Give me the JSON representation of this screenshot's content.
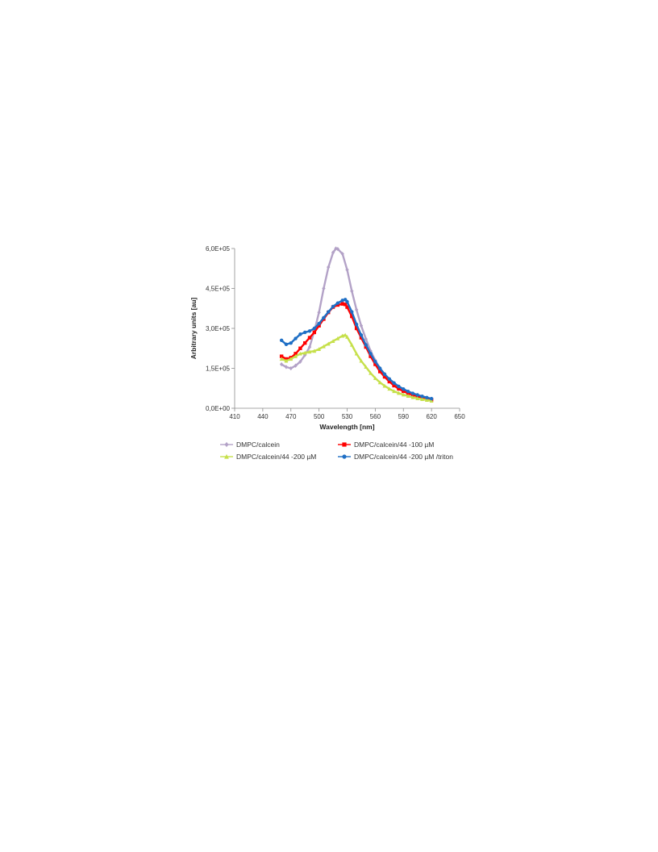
{
  "chart_data": {
    "type": "line",
    "title": "",
    "xlabel": "Wavelength  [nm]",
    "ylabel": "Arbitrary units [au]",
    "xlim": [
      410,
      650
    ],
    "ylim": [
      0,
      600000
    ],
    "x_ticks": [
      410,
      440,
      470,
      500,
      530,
      560,
      590,
      620,
      650
    ],
    "x_tick_labels": [
      "410",
      "440",
      "470",
      "500",
      "530",
      "560",
      "590",
      "620",
      "650"
    ],
    "y_ticks": [
      0,
      150000,
      300000,
      450000,
      600000
    ],
    "y_tick_labels": [
      "0,0E+00",
      "1,5E+05",
      "3,0E+05",
      "4,5E+05",
      "6,0E+05"
    ],
    "grid": false,
    "legend_position": "bottom",
    "series": [
      {
        "name": "DMPC/calcein",
        "color": "#b3a2c7",
        "marker": "diamond",
        "x": [
          460,
          465,
          470,
          475,
          480,
          485,
          490,
          495,
          500,
          505,
          510,
          515,
          518,
          520,
          525,
          530,
          535,
          540,
          545,
          550,
          555,
          560,
          565,
          570,
          575,
          580,
          585,
          590,
          595,
          600,
          605,
          610,
          615,
          620
        ],
        "y": [
          165000,
          155000,
          150000,
          160000,
          175000,
          200000,
          230000,
          290000,
          360000,
          450000,
          530000,
          585000,
          600000,
          598000,
          580000,
          520000,
          440000,
          370000,
          310000,
          260000,
          215000,
          180000,
          150000,
          125000,
          105000,
          90000,
          78000,
          68000,
          60000,
          54000,
          48000,
          43000,
          38000,
          33000
        ]
      },
      {
        "name": "DMPC/calcein/44 -100 µM",
        "color": "#ff0000",
        "marker": "square",
        "x": [
          460,
          465,
          470,
          475,
          480,
          485,
          490,
          495,
          500,
          505,
          510,
          515,
          520,
          525,
          528,
          530,
          535,
          540,
          545,
          550,
          555,
          560,
          565,
          570,
          575,
          580,
          585,
          590,
          595,
          600,
          605,
          610,
          615,
          620
        ],
        "y": [
          195000,
          185000,
          190000,
          205000,
          225000,
          245000,
          265000,
          285000,
          310000,
          335000,
          360000,
          380000,
          388000,
          392000,
          390000,
          380000,
          345000,
          300000,
          265000,
          230000,
          195000,
          165000,
          138000,
          118000,
          100000,
          85000,
          73000,
          64000,
          56000,
          50000,
          45000,
          40000,
          36000,
          32000
        ]
      },
      {
        "name": "DMPC/calcein/44 -200 µM",
        "color": "#c6e04b",
        "marker": "triangle",
        "x": [
          460,
          465,
          470,
          475,
          480,
          485,
          490,
          495,
          500,
          505,
          510,
          515,
          520,
          525,
          528,
          530,
          535,
          540,
          545,
          550,
          555,
          560,
          565,
          570,
          575,
          580,
          585,
          590,
          595,
          600,
          605,
          610,
          615,
          620
        ],
        "y": [
          185000,
          178000,
          185000,
          195000,
          205000,
          208000,
          212000,
          215000,
          222000,
          232000,
          242000,
          252000,
          262000,
          272000,
          275000,
          268000,
          238000,
          205000,
          178000,
          155000,
          132000,
          113000,
          97000,
          84000,
          73000,
          64000,
          57000,
          51000,
          46000,
          41000,
          37000,
          34000,
          31000,
          28000
        ]
      },
      {
        "name": "DMPC/calcein/44 -200 µM /triton",
        "color": "#1f6fc5",
        "marker": "circle",
        "x": [
          460,
          465,
          470,
          475,
          480,
          485,
          490,
          495,
          500,
          505,
          510,
          515,
          520,
          525,
          528,
          530,
          535,
          540,
          545,
          550,
          555,
          560,
          565,
          570,
          575,
          580,
          585,
          590,
          595,
          600,
          605,
          610,
          615,
          620
        ],
        "y": [
          255000,
          240000,
          245000,
          262000,
          278000,
          285000,
          290000,
          300000,
          318000,
          340000,
          362000,
          382000,
          395000,
          405000,
          408000,
          400000,
          362000,
          315000,
          275000,
          238000,
          205000,
          175000,
          150000,
          128000,
          110000,
          95000,
          82000,
          72000,
          63000,
          56000,
          50000,
          45000,
          40000,
          36000
        ]
      }
    ]
  }
}
